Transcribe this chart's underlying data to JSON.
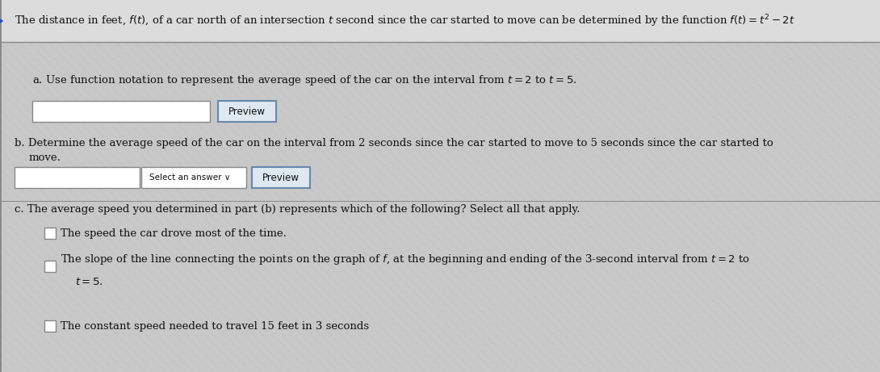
{
  "bg_color": "#c8c8c8",
  "header_bg": "#dcdcdc",
  "content_bg": "#d4d4d4",
  "hatch_color": "#bcbcbc",
  "header_text": "The distance in feet, $f(t)$, of a car north of an intersection $t$ second since the car started to move can be determined by the function $f(t) = t^2 - 2t$",
  "part_a_label": "a. Use function notation to represent the average speed of the car on the interval from $t = 2$ to $t = 5$.",
  "part_b_line1": "b. Determine the average speed of the car on the interval from 2 seconds since the car started to move to 5 seconds since the car started to",
  "part_b_line2": "move.",
  "part_c_label": "c. The average speed you determined in part (b) represents which of the following? Select all that apply.",
  "choice1": "The speed the car drove most of the time.",
  "choice2_line1": "The slope of the line connecting the points on the graph of $f$, at the beginning and ending of the 3-second interval from $t = 2$ to",
  "choice2_line2": "$t = 5$.",
  "choice3": "The constant speed needed to travel 15 feet in 3 seconds",
  "preview_btn": "Preview",
  "select_answer": "Select an answer",
  "input_box_color": "#ffffff",
  "border_color": "#888888",
  "preview_border": "#6688aa",
  "preview_bg": "#dde8f0",
  "text_color": "#111111",
  "arrow_color": "#2255cc",
  "header_line_color": "#888888",
  "font_size": 9.5,
  "small_font": 8.5
}
